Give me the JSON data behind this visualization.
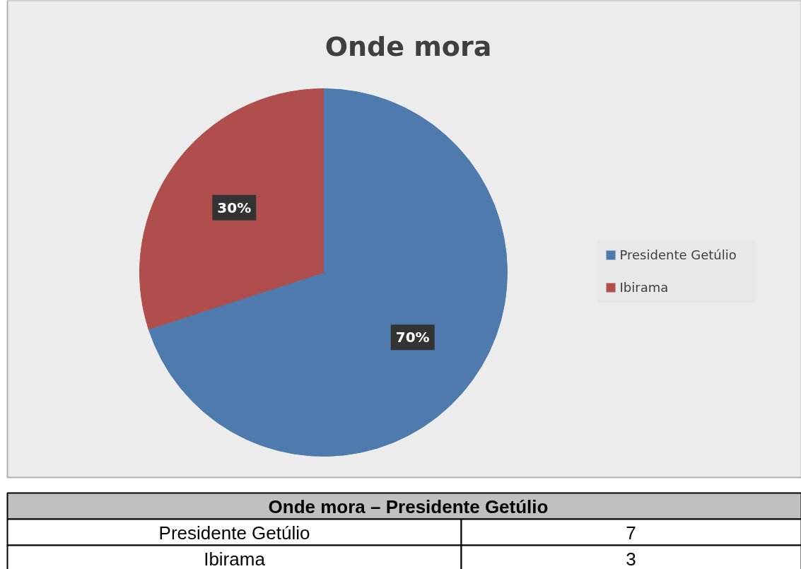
{
  "chart_data": {
    "type": "pie",
    "title": "Onde mora",
    "categories": [
      "Presidente Getúlio",
      "Ibirama"
    ],
    "values": [
      70,
      30
    ],
    "colors": [
      "#4f7aae",
      "#b04e4d"
    ],
    "value_labels": [
      "70%",
      "30%"
    ],
    "legend": "right",
    "annotations": [
      "Onde mora – Presidente Getúlio",
      "Presidente Getúlio",
      "7",
      "Ibirama",
      "3"
    ]
  }
}
